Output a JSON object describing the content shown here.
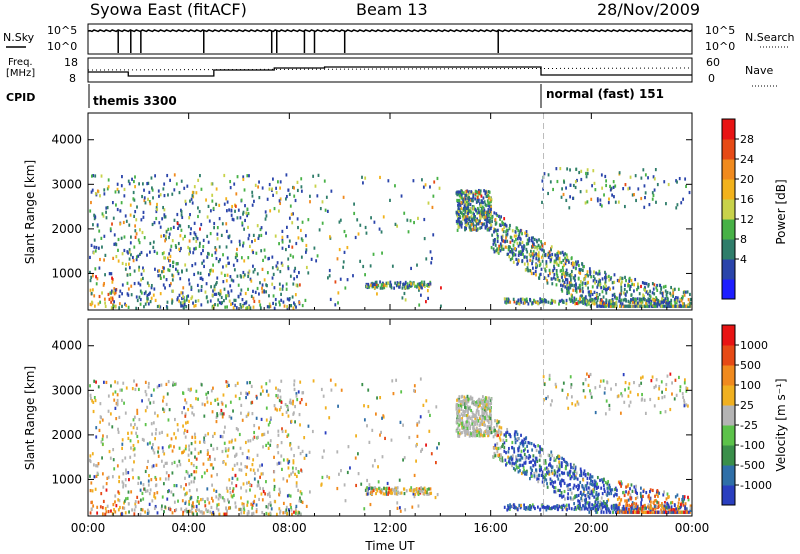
{
  "header": {
    "radar": "Syowa East (fitACF)",
    "beam": "Beam 13",
    "date": "28/Nov/2009"
  },
  "nsky_panel": {
    "left_label": "N.Sky",
    "right_label": "N.Search",
    "left_ticks": [
      "10^5",
      "10^0"
    ],
    "right_ticks": [
      "10^5",
      "10^0"
    ]
  },
  "freq_panel": {
    "left_label_1": "Freq.",
    "left_label_2": "[MHz]",
    "right_label": "Nave",
    "left_ticks": [
      "18",
      "8"
    ],
    "right_ticks": [
      "60",
      "0"
    ]
  },
  "cpid_panel": {
    "label": "CPID",
    "modes": [
      {
        "name": "themis 3300",
        "start_hour": 0
      },
      {
        "name": "normal (fast) 151",
        "start_hour": 18.1
      }
    ]
  },
  "chart_data": [
    {
      "type": "heatmap",
      "panel": "power",
      "xlabel": "",
      "ylabel": "Slant Range [km]",
      "x_ticks": [
        "00:00",
        "04:00",
        "08:00",
        "12:00",
        "16:00",
        "20:00",
        "00:00"
      ],
      "x_tick_hours": [
        0,
        4,
        8,
        12,
        16,
        20,
        24
      ],
      "y_ticks": [
        1000,
        2000,
        3000,
        4000
      ],
      "xlim_hours": [
        0,
        24
      ],
      "ylim_km": [
        180,
        4600
      ],
      "colorbar": {
        "label": "Power [dB]",
        "ticks": [
          "28",
          "24",
          "20",
          "16",
          "12",
          "8",
          "4"
        ],
        "levels": [
          0,
          4,
          8,
          12,
          16,
          20,
          24,
          28,
          32
        ],
        "colors": [
          "#1e1eff",
          "#2a44aa",
          "#2f7d6a",
          "#47b146",
          "#c8d24a",
          "#f2b21c",
          "#f08a1e",
          "#e64a16",
          "#e81414"
        ]
      }
    },
    {
      "type": "heatmap",
      "panel": "velocity",
      "xlabel": "Time UT",
      "ylabel": "Slant Range [km]",
      "x_ticks": [
        "00:00",
        "04:00",
        "08:00",
        "12:00",
        "16:00",
        "20:00",
        "00:00"
      ],
      "x_tick_hours": [
        0,
        4,
        8,
        12,
        16,
        20,
        24
      ],
      "y_ticks": [
        1000,
        2000,
        3000,
        4000
      ],
      "xlim_hours": [
        0,
        24
      ],
      "ylim_km": [
        180,
        4600
      ],
      "colorbar": {
        "label": "Velocity [m s⁻¹]",
        "ticks": [
          "1000",
          "500",
          "100",
          "25",
          "-25",
          "-100",
          "-500",
          "-1000"
        ],
        "colors": [
          "#2a3fbf",
          "#2f6fa8",
          "#3a8f4a",
          "#5cc24a",
          "#b4b4b4",
          "#f0b020",
          "#f08a1e",
          "#e64a16",
          "#e81414"
        ]
      }
    }
  ]
}
